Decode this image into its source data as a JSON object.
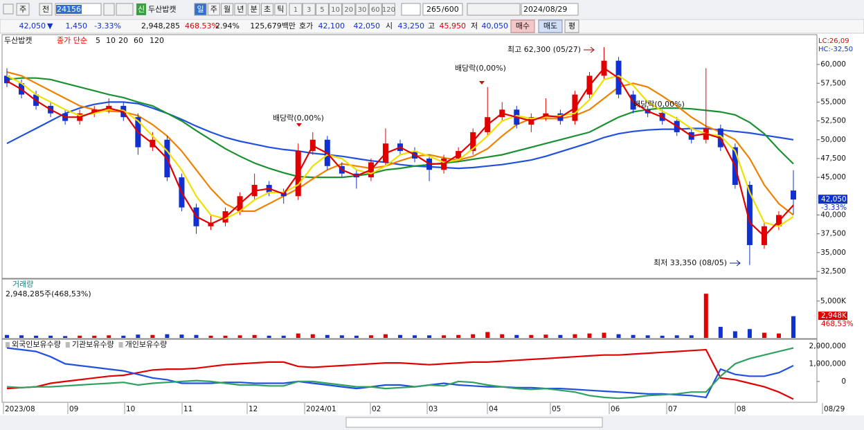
{
  "toolbar": {
    "market": "주",
    "prev": "전",
    "code": "241560",
    "new": "신",
    "name": "두산밥캣",
    "periods": [
      "일",
      "주",
      "월",
      "년",
      "분",
      "초",
      "틱"
    ],
    "nums": [
      "1",
      "3",
      "5",
      "10",
      "20",
      "30",
      "60",
      "120"
    ],
    "count": "265",
    "total": "/600",
    "date": "2024/08/29"
  },
  "info_bar": {
    "price": "42,050",
    "arrow": "▼",
    "change": "1,450",
    "change_pct": "-3.33%",
    "volume": "2,948,285",
    "volume_pct": "468.53%",
    "turnover": "2.94%",
    "amount": "125,679백만",
    "quote_label": "호가",
    "ask": "42,100",
    "bid": "42,050",
    "open_label": "시",
    "open": "43,250",
    "high_label": "고",
    "high": "45,950",
    "low_label": "저",
    "low": "40,050",
    "buy": "매수",
    "sell": "매도",
    "avg": "평"
  },
  "x_axis": [
    "2023/08",
    "09",
    "10",
    "11",
    "12",
    "2024/01",
    "02",
    "03",
    "04",
    "05",
    "06",
    "07",
    "08",
    "08/29"
  ],
  "chart_data": [
    {
      "type": "candlestick",
      "title": "두산밥캣",
      "legend_label": "종가 단순",
      "up_color": "#e00000",
      "down_color": "#1030d0",
      "open": [
        58500,
        57500,
        56000,
        54500,
        53500,
        52500,
        53500,
        54000,
        54500,
        53000,
        49000,
        50000,
        45000,
        41000,
        38500,
        39000,
        40500,
        42500,
        44000,
        43000,
        42500,
        48500,
        50000,
        46500,
        45500,
        45000,
        47000,
        49500,
        48500,
        47500,
        46000,
        47500,
        48500,
        51000,
        53000,
        54000,
        52000,
        53000,
        53500,
        52500,
        56000,
        58500,
        60500,
        56000,
        54000,
        53500,
        52500,
        51000,
        50000,
        51500,
        49000,
        44000,
        36000,
        38500,
        43250
      ],
      "high": [
        59500,
        58000,
        56500,
        55000,
        54000,
        54000,
        54500,
        55500,
        55000,
        53500,
        51000,
        50500,
        45500,
        41500,
        40000,
        41000,
        43000,
        45500,
        44500,
        43500,
        49500,
        51000,
        50500,
        47000,
        46000,
        47500,
        51500,
        50000,
        49000,
        48000,
        48000,
        49000,
        51500,
        57000,
        55000,
        54500,
        53500,
        55500,
        54000,
        56500,
        59000,
        62300,
        61000,
        56500,
        54500,
        54000,
        53000,
        51500,
        59500,
        52000,
        49500,
        44500,
        39000,
        40500,
        45950
      ],
      "low": [
        57000,
        55500,
        54000,
        53000,
        52000,
        52000,
        53000,
        53500,
        52500,
        48000,
        48500,
        44500,
        40500,
        37500,
        38000,
        38500,
        40000,
        42000,
        42500,
        41500,
        42000,
        48000,
        46000,
        45000,
        43500,
        44500,
        46500,
        48000,
        47000,
        44500,
        45500,
        47000,
        48000,
        50500,
        52500,
        51500,
        51000,
        52500,
        52000,
        52000,
        55500,
        58000,
        55500,
        53500,
        53000,
        52000,
        50500,
        49500,
        49500,
        48500,
        43500,
        33350,
        35500,
        38000,
        40050
      ],
      "close": [
        57500,
        56000,
        54500,
        53500,
        52500,
        53500,
        54000,
        54500,
        53000,
        49000,
        50000,
        45000,
        41000,
        38500,
        39000,
        40500,
        42500,
        44000,
        43000,
        42500,
        48500,
        50000,
        46500,
        45500,
        45000,
        47000,
        49500,
        48500,
        47500,
        46000,
        47500,
        48500,
        51000,
        53000,
        54000,
        52000,
        53000,
        53500,
        52500,
        56000,
        58500,
        60500,
        56000,
        54000,
        53500,
        52500,
        51000,
        50000,
        51500,
        49000,
        44000,
        36000,
        38500,
        40000,
        42050
      ],
      "series": [
        {
          "name": "5",
          "color": "#e00000",
          "values": [
            57800,
            56700,
            55200,
            54000,
            53000,
            53000,
            53700,
            54200,
            53700,
            51000,
            49500,
            47500,
            43000,
            39800,
            38800,
            39700,
            41500,
            43200,
            43500,
            42800,
            45500,
            49200,
            48200,
            46000,
            45200,
            46000,
            48200,
            49000,
            48000,
            46800,
            46800,
            48000,
            49800,
            52000,
            53500,
            53000,
            52500,
            53200,
            53000,
            54200,
            57200,
            59500,
            58200,
            55000,
            53800,
            53000,
            51800,
            50500,
            50800,
            50200,
            46500,
            39000,
            37200,
            39200,
            41300
          ]
        },
        {
          "name": "10",
          "color": "#f0e000",
          "values": [
            58500,
            57500,
            56000,
            55000,
            54000,
            53200,
            53500,
            54000,
            53900,
            52500,
            50500,
            48500,
            46000,
            42500,
            40000,
            39500,
            40500,
            42000,
            43000,
            43000,
            44000,
            46500,
            48000,
            47500,
            46000,
            45500,
            46500,
            48000,
            48500,
            47800,
            47000,
            47300,
            48800,
            50500,
            52500,
            53200,
            52800,
            53000,
            53200,
            53500,
            55300,
            58000,
            58500,
            57200,
            55000,
            53800,
            52800,
            51500,
            50800,
            50500,
            48500,
            43000,
            39000,
            38500,
            39800
          ]
        },
        {
          "name": "20",
          "color": "#f08000",
          "values": [
            59000,
            58500,
            57500,
            56500,
            55500,
            54500,
            54000,
            53800,
            53700,
            53200,
            52000,
            50500,
            48500,
            46000,
            43500,
            41500,
            40500,
            40500,
            41500,
            42500,
            43500,
            44800,
            46000,
            46800,
            46500,
            46200,
            46500,
            47200,
            47800,
            48000,
            47600,
            47300,
            47800,
            48800,
            50500,
            52000,
            52800,
            52800,
            52800,
            53200,
            54000,
            55500,
            57000,
            57500,
            57000,
            55800,
            54500,
            53000,
            51800,
            51000,
            50000,
            47500,
            44000,
            41500,
            40000
          ]
        },
        {
          "name": "60",
          "color": "#1a9030",
          "values": [
            58000,
            58200,
            58200,
            58000,
            57500,
            57000,
            56500,
            56000,
            55600,
            55000,
            54500,
            53500,
            52500,
            51200,
            50000,
            48800,
            47800,
            46900,
            46200,
            45600,
            45100,
            45000,
            45000,
            45000,
            45200,
            45500,
            46000,
            46200,
            46500,
            46700,
            46900,
            47100,
            47400,
            47700,
            48000,
            48500,
            49000,
            49500,
            50000,
            50500,
            51000,
            52000,
            53000,
            53700,
            54000,
            54200,
            54200,
            54100,
            53900,
            53700,
            53300,
            52300,
            50800,
            48700,
            46800
          ]
        },
        {
          "name": "120",
          "color": "#2050e0",
          "values": [
            49500,
            50500,
            51500,
            52500,
            53500,
            54200,
            54700,
            55000,
            55000,
            54800,
            54200,
            53500,
            52700,
            51800,
            51000,
            50300,
            49800,
            49400,
            49000,
            48700,
            48500,
            48200,
            48000,
            47800,
            47500,
            47200,
            47000,
            46700,
            46500,
            46400,
            46300,
            46200,
            46300,
            46500,
            46700,
            47000,
            47300,
            47800,
            48400,
            49000,
            49600,
            50300,
            50800,
            51100,
            51300,
            51400,
            51400,
            51500,
            51500,
            51300,
            51100,
            50900,
            50600,
            50300,
            50000
          ]
        }
      ],
      "ylim": [
        31580,
        63780
      ],
      "yticks": [
        {
          "value": 32500,
          "label": "32,500"
        },
        {
          "value": 35000,
          "label": "35,000"
        },
        {
          "value": 37500,
          "label": "37,500"
        },
        {
          "value": 40000,
          "label": "40,000"
        },
        {
          "value": 45000,
          "label": "45,000"
        },
        {
          "value": 47500,
          "label": "47,500"
        },
        {
          "value": 50000,
          "label": "50,000"
        },
        {
          "value": 52500,
          "label": "52,500"
        },
        {
          "value": 55000,
          "label": "55,000"
        },
        {
          "value": 57500,
          "label": "57,500"
        },
        {
          "value": 60000,
          "label": "60,000"
        }
      ],
      "annotations": [
        "최고 62,300 (05/27)",
        "최저 33,350 (08/05)",
        "배당락(0,00%)",
        "배당락(0,00%)",
        "배당락(0,00%)"
      ],
      "last_price": {
        "value": 42050,
        "label": "42,050",
        "change": "-3.33%"
      },
      "lc": "LC:26,09",
      "hc": "HC:-32,50"
    },
    {
      "type": "bar",
      "title": "거래량",
      "subtitle": "2,948,285주(468,53%)",
      "up_color": "#e00000",
      "down_color": "#1030d0",
      "values": [
        400,
        350,
        300,
        300,
        250,
        300,
        300,
        350,
        300,
        450,
        400,
        500,
        450,
        400,
        300,
        300,
        350,
        400,
        300,
        300,
        600,
        500,
        400,
        350,
        300,
        350,
        500,
        400,
        350,
        350,
        350,
        400,
        500,
        800,
        500,
        400,
        400,
        450,
        400,
        500,
        600,
        700,
        500,
        400,
        350,
        300,
        350,
        350,
        6000,
        1500,
        900,
        1200,
        700,
        600,
        2948
      ],
      "last_label": "2,948K",
      "last_pct": "468,53%",
      "ylim": [
        0,
        7800
      ],
      "yticks": [
        {
          "value": 5000,
          "label": "5,000K"
        }
      ]
    },
    {
      "type": "line",
      "series": [
        {
          "name": "외국인보유수량",
          "color": "#e00000",
          "values": [
            -400000,
            -350000,
            -300000,
            -100000,
            0,
            100000,
            200000,
            300000,
            350000,
            500000,
            650000,
            700000,
            700000,
            750000,
            850000,
            950000,
            1000000,
            1050000,
            1100000,
            1100000,
            850000,
            800000,
            850000,
            900000,
            950000,
            1000000,
            1050000,
            1050000,
            1000000,
            950000,
            1000000,
            1050000,
            1100000,
            1100000,
            1150000,
            1200000,
            1250000,
            1300000,
            1350000,
            1400000,
            1450000,
            1500000,
            1500000,
            1550000,
            1600000,
            1650000,
            1700000,
            1750000,
            1800000,
            200000,
            100000,
            -100000,
            -300000,
            -600000,
            -1000000
          ]
        },
        {
          "name": "기관보유수량",
          "color": "#2050e0",
          "values": [
            1900000,
            1800000,
            1700000,
            1400000,
            1000000,
            900000,
            800000,
            700000,
            600000,
            400000,
            200000,
            100000,
            -100000,
            -100000,
            -100000,
            -50000,
            -50000,
            -100000,
            -100000,
            -100000,
            0,
            -100000,
            -200000,
            -300000,
            -400000,
            -300000,
            -200000,
            -200000,
            -300000,
            -200000,
            -100000,
            -200000,
            -250000,
            -300000,
            -300000,
            -350000,
            -350000,
            -400000,
            -400000,
            -450000,
            -500000,
            -550000,
            -600000,
            -650000,
            -700000,
            -700000,
            -750000,
            -800000,
            -900000,
            700000,
            400000,
            300000,
            300000,
            500000,
            900000
          ]
        },
        {
          "name": "개인보유수량",
          "color": "#30a060",
          "values": [
            -300000,
            -350000,
            -300000,
            -300000,
            -250000,
            -200000,
            -150000,
            -100000,
            -50000,
            -200000,
            -100000,
            -50000,
            0,
            50000,
            0,
            -100000,
            -200000,
            -200000,
            -250000,
            -250000,
            0,
            0,
            -100000,
            -200000,
            -300000,
            -300000,
            -400000,
            -350000,
            -300000,
            -200000,
            -250000,
            0,
            -50000,
            -200000,
            -300000,
            -400000,
            -450000,
            -400000,
            -500000,
            -600000,
            -800000,
            -900000,
            -950000,
            -900000,
            -800000,
            -750000,
            -700000,
            -600000,
            -600000,
            300000,
            1000000,
            1300000,
            1500000,
            1700000,
            1900000
          ]
        }
      ],
      "ylim": [
        -1140000,
        2310000
      ],
      "yticks": [
        {
          "value": 2000000,
          "label": "2,000,000"
        },
        {
          "value": 1000000,
          "label": "1,000,000"
        },
        0
      ]
    }
  ]
}
